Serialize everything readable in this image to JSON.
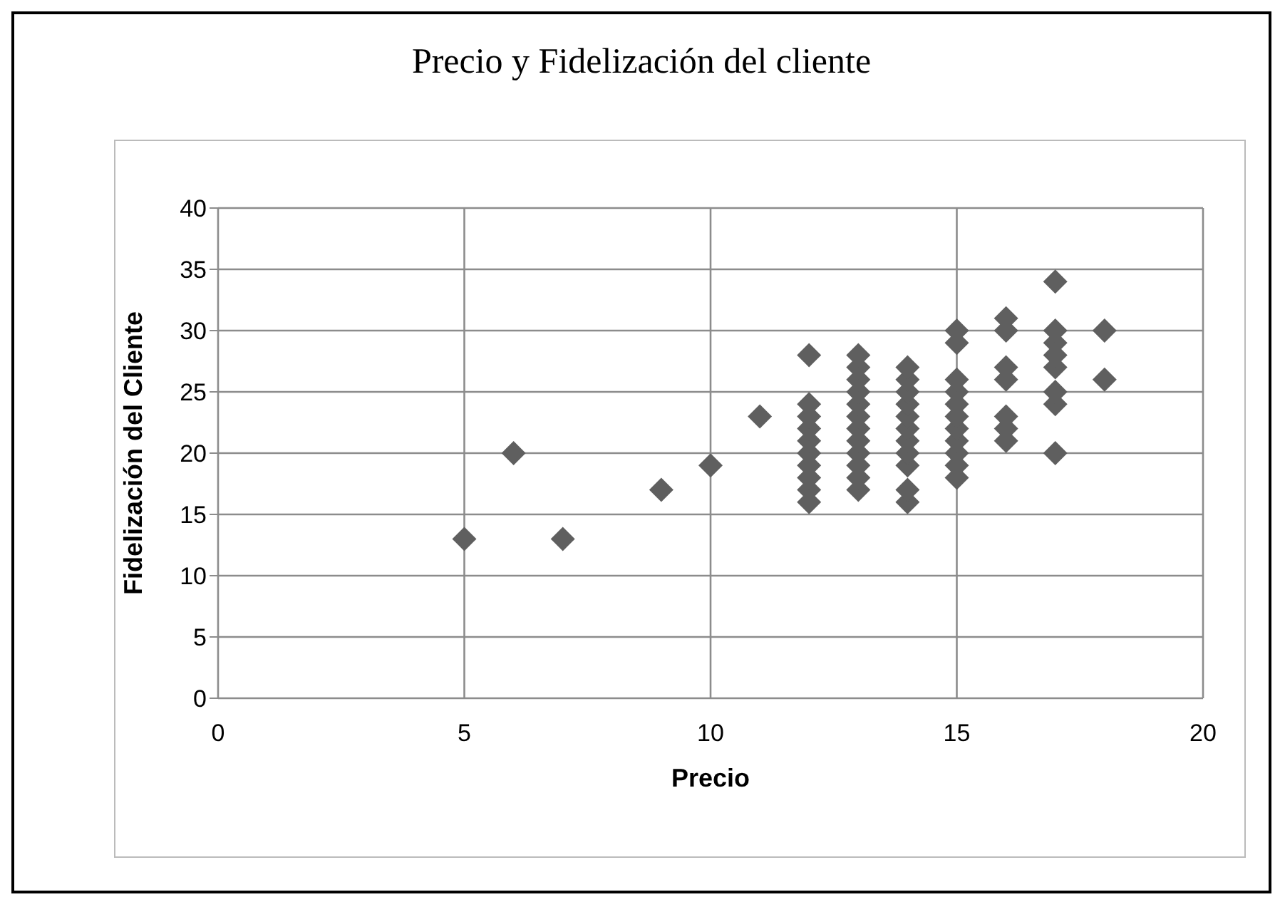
{
  "chart_data": {
    "type": "scatter",
    "title": "Precio y Fidelización del cliente",
    "xlabel": "Precio",
    "ylabel": "Fidelización del Cliente",
    "series": [
      {
        "color": "#5f5f5f",
        "x": [
          5,
          6,
          7,
          9,
          10,
          11,
          12,
          12,
          12,
          12,
          12,
          12,
          12,
          12,
          12,
          12,
          13,
          13,
          13,
          13,
          13,
          13,
          13,
          13,
          13,
          13,
          13,
          13,
          14,
          14,
          14,
          14,
          14,
          14,
          14,
          14,
          14,
          14,
          14,
          15,
          15,
          15,
          15,
          15,
          15,
          15,
          15,
          15,
          15,
          15,
          16,
          16,
          16,
          16,
          16,
          16,
          16,
          17,
          17,
          17,
          17,
          17,
          17,
          17,
          17,
          18,
          18
        ],
        "values": [
          13,
          20,
          13,
          17,
          19,
          23,
          16,
          17,
          18,
          19,
          20,
          21,
          22,
          23,
          24,
          28,
          17,
          18,
          19,
          20,
          21,
          22,
          23,
          24,
          25,
          26,
          27,
          28,
          16,
          17,
          19,
          20,
          21,
          22,
          23,
          24,
          25,
          26,
          27,
          18,
          19,
          20,
          21,
          22,
          23,
          24,
          25,
          26,
          29,
          30,
          21,
          22,
          23,
          26,
          27,
          30,
          31,
          20,
          24,
          25,
          27,
          28,
          29,
          30,
          34,
          26,
          30
        ]
      }
    ],
    "xlim": [
      0,
      20
    ],
    "xticks": [
      0,
      5,
      10,
      15,
      20
    ],
    "ylim": [
      0,
      40
    ],
    "yticks": [
      0,
      5,
      10,
      15,
      20,
      25,
      30,
      35,
      40
    ],
    "grid": true,
    "marker": "diamond",
    "legend": false
  }
}
